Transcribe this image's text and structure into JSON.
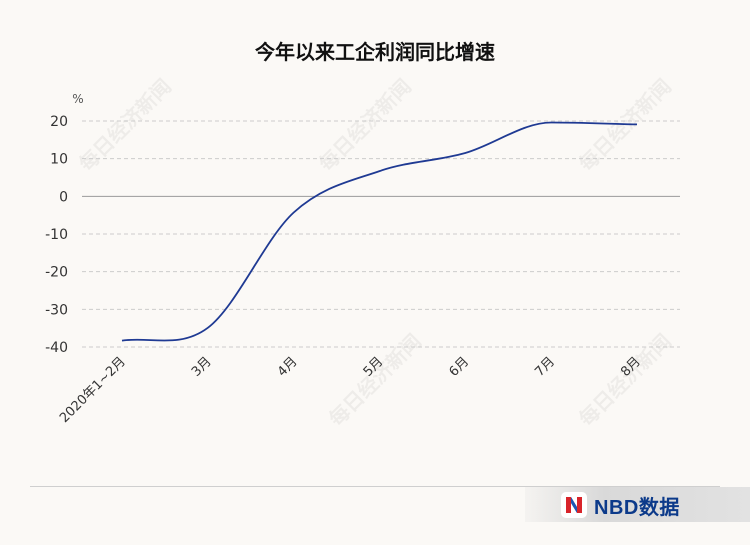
{
  "title": "今年以来工企利润同比增速",
  "watermark": "每日经济新闻",
  "brand": {
    "name": "NBD数据"
  },
  "chart_data": {
    "type": "line",
    "title": "今年以来工企利润同比增速",
    "ylabel": "%",
    "xlabel": "",
    "ylim": [
      -40,
      20
    ],
    "yticks": [
      20,
      10,
      0,
      -10,
      -20,
      -30,
      -40
    ],
    "grid": true,
    "categories": [
      "2020年1~2月",
      "3月",
      "4月",
      "5月",
      "6月",
      "7月",
      "8月"
    ],
    "series": [
      {
        "values": [
          -38.3,
          -34.9,
          -4.3,
          6.7,
          11.5,
          19.6,
          19.1
        ],
        "color": "#1f3a93"
      }
    ]
  }
}
